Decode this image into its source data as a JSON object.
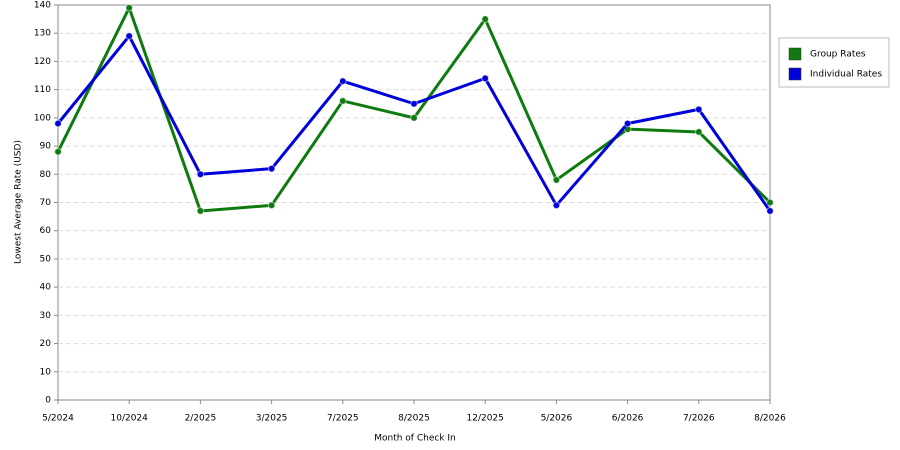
{
  "chart_data": {
    "type": "line",
    "x_label": "Month of Check In",
    "y_label": "Lowest Average Rate (USD)",
    "categories": [
      "5/2024",
      "10/2024",
      "2/2025",
      "3/2025",
      "7/2025",
      "8/2025",
      "12/2025",
      "5/2026",
      "6/2026",
      "7/2026",
      "8/2026"
    ],
    "series": [
      {
        "name": "Group Rates",
        "color": "#0f7a0f",
        "values": [
          88,
          139,
          67,
          69,
          106,
          100,
          135,
          78,
          96,
          95,
          70
        ]
      },
      {
        "name": "Individual Rates",
        "color": "#0000dd",
        "values": [
          98,
          129,
          80,
          82,
          113,
          105,
          114,
          69,
          98,
          103,
          67
        ]
      }
    ],
    "ylim": [
      0,
      140
    ],
    "yticks": [
      0,
      10,
      20,
      30,
      40,
      50,
      60,
      70,
      80,
      90,
      100,
      110,
      120,
      130,
      140
    ],
    "grid": true,
    "legend": "right"
  }
}
